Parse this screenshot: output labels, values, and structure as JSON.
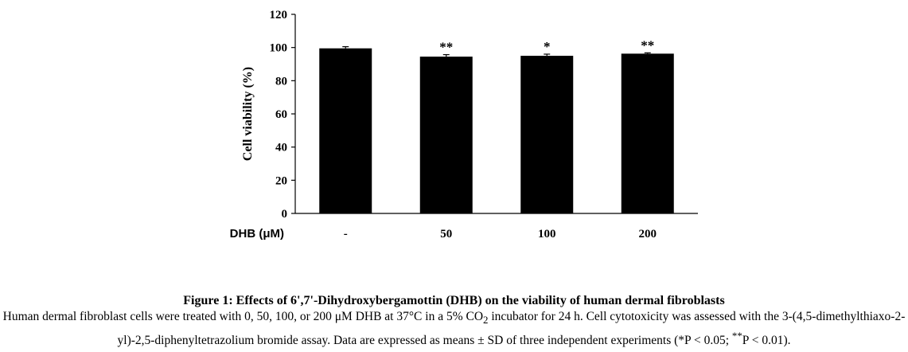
{
  "chart_data": {
    "type": "bar",
    "categories": [
      "-",
      "50",
      "100",
      "200"
    ],
    "values": [
      99.5,
      94.5,
      95.0,
      96.3
    ],
    "errors": [
      1.0,
      1.2,
      1.0,
      0.5
    ],
    "significance": [
      "",
      "**",
      "*",
      "**"
    ],
    "xlabel": "DHB (μM)",
    "ylabel": "Cell viability (%)",
    "ylim": [
      0,
      120
    ],
    "yticks": [
      0,
      20,
      40,
      60,
      80,
      100,
      120
    ],
    "bar_color": "#000000",
    "grid": false,
    "legend": "none"
  },
  "caption": {
    "title": "Figure 1: Effects of 6',7'-Dihydroxybergamottin (DHB) on the viability of human dermal fibroblasts",
    "body_1": "Human dermal fibroblast cells were treated with 0, 50, 100, or 200 μM DHB at 37°C in a 5% CO",
    "body_2": "2",
    "body_3": " incubator for 24 h. Cell cytotoxicity was assessed with the 3-(4,5-dimethylthiaxo-2-yl)-2,5-diphenyltetrazolium bromide assay. Data are expressed as means ± SD of three independent experiments (*P < 0.05; ",
    "body_4": "**",
    "body_5": "P < 0.01)."
  }
}
